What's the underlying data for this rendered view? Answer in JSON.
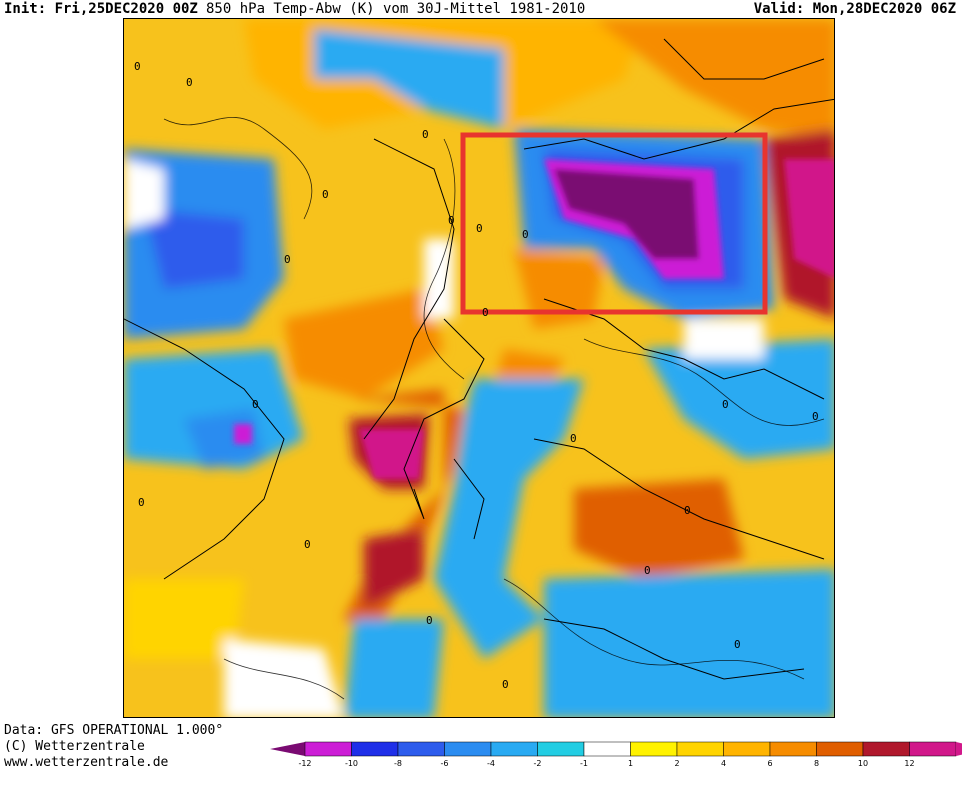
{
  "header": {
    "init": "Init: Fri,25DEC2020 00Z",
    "title": "850 hPa Temp-Abw (K) vom 30J-Mittel 1981-2010",
    "valid": "Valid: Mon,28DEC2020 06Z"
  },
  "footer": {
    "line1": "Data: GFS OPERATIONAL 1.000°",
    "line2": "(C) Wetterzentrale",
    "line3": "www.wetterzentrale.de"
  },
  "map": {
    "contour_label": "0",
    "highlight_color": "#e8342e"
  },
  "legend": {
    "levels": [
      {
        "label": "-12",
        "color": "#cc1dd6"
      },
      {
        "label": "-10",
        "color": "#1f2fe8"
      },
      {
        "label": "-8",
        "color": "#2d5cec"
      },
      {
        "label": "-6",
        "color": "#2b8cf0"
      },
      {
        "label": "-4",
        "color": "#29aaf2"
      },
      {
        "label": "-2",
        "color": "#22cde3"
      },
      {
        "label": "-1",
        "color": "#ffffff"
      },
      {
        "label": "1",
        "color": "#fff200"
      },
      {
        "label": "2",
        "color": "#ffd400"
      },
      {
        "label": "4",
        "color": "#ffb400"
      },
      {
        "label": "6",
        "color": "#f68c00"
      },
      {
        "label": "8",
        "color": "#e05e00"
      },
      {
        "label": "10",
        "color": "#b0182c"
      },
      {
        "label": "12",
        "color": "#d1188a"
      }
    ],
    "low_end_color": "#7a0a72",
    "high_end_color": "#d1188a"
  }
}
